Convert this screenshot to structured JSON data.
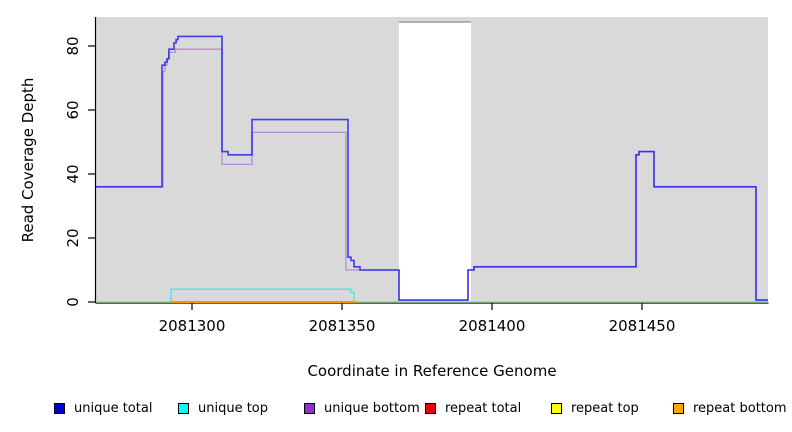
{
  "axes": {
    "x": {
      "label": "Coordinate in Reference Genome",
      "tick_values": [
        2081300,
        2081350,
        2081400,
        2081450
      ],
      "tick_labels": [
        "2081300",
        "2081350",
        "2081400",
        "2081450"
      ],
      "range": [
        2081268,
        2081492
      ]
    },
    "y": {
      "label": "Read Coverage Depth",
      "tick_values": [
        0,
        20,
        40,
        60,
        80
      ],
      "tick_labels": [
        "0",
        "20",
        "40",
        "60",
        "80"
      ],
      "range": [
        0,
        89
      ]
    }
  },
  "colors": {
    "plot_background": "#d9d9d9",
    "gap_fill": "#ffffff",
    "gap_top_border": "#9c9c9c",
    "axis": "#000000",
    "unique_total_line": "#1c1cee",
    "unique_bottom_line": "#b88cd8",
    "unique_top_line": "#3de9e9",
    "repeat_bottom_line": "#ff9100",
    "baseline_green": "#9cd89c"
  },
  "gap_region": {
    "x_start": 2081369,
    "x_end": 2081393
  },
  "chart_data": {
    "type": "line",
    "title": "",
    "xlabel": "Coordinate in Reference Genome",
    "ylabel": "Read Coverage Depth",
    "xlim": [
      2081268,
      2081492
    ],
    "ylim": [
      0,
      89
    ],
    "grid": false,
    "legend_position": "bottom",
    "series": [
      {
        "name": "baseline",
        "color": "#9cd89c",
        "width": 1.4,
        "points": [
          [
            2081268,
            0
          ],
          [
            2081492,
            0
          ]
        ]
      },
      {
        "name": "repeat bottom",
        "color": "#ff9100",
        "width": 2,
        "points": [
          [
            2081293,
            0
          ],
          [
            2081355,
            0
          ]
        ]
      },
      {
        "name": "unique top",
        "color": "#3de9e9",
        "width": 1.3,
        "points": [
          [
            2081293,
            0
          ],
          [
            2081293,
            4
          ],
          [
            2081353,
            4
          ],
          [
            2081353,
            3
          ],
          [
            2081354,
            3
          ],
          [
            2081354,
            0
          ]
        ]
      },
      {
        "name": "unique bottom",
        "color": "#b88cd8",
        "width": 1.3,
        "points": [
          [
            2081268,
            36
          ],
          [
            2081290.3,
            36
          ],
          [
            2081290.3,
            72
          ],
          [
            2081291,
            72
          ],
          [
            2081291,
            74
          ],
          [
            2081291.7,
            74
          ],
          [
            2081291.7,
            76
          ],
          [
            2081292.3,
            76
          ],
          [
            2081292.3,
            78
          ],
          [
            2081294.5,
            78
          ],
          [
            2081294.5,
            79
          ],
          [
            2081310,
            79
          ],
          [
            2081310,
            43
          ],
          [
            2081320,
            43
          ],
          [
            2081320,
            53
          ],
          [
            2081351.3,
            53
          ],
          [
            2081351.3,
            10
          ],
          [
            2081369,
            10
          ],
          [
            2081369,
            0.6
          ],
          [
            2081392,
            0.6
          ],
          [
            2081392,
            10
          ],
          [
            2081394,
            10
          ],
          [
            2081394,
            11
          ],
          [
            2081448,
            11
          ],
          [
            2081448,
            46
          ],
          [
            2081449,
            46
          ],
          [
            2081449,
            47
          ],
          [
            2081454,
            47
          ],
          [
            2081454,
            36
          ],
          [
            2081488,
            36
          ],
          [
            2081488,
            0.6
          ],
          [
            2081492,
            0.6
          ]
        ]
      },
      {
        "name": "unique total",
        "color": "#1c1cee",
        "width": 1.6,
        "opacity": 0.82,
        "points": [
          [
            2081268,
            36
          ],
          [
            2081290,
            36
          ],
          [
            2081290,
            74
          ],
          [
            2081291,
            74
          ],
          [
            2081291,
            75
          ],
          [
            2081291.7,
            75
          ],
          [
            2081291.7,
            76
          ],
          [
            2081292.3,
            76
          ],
          [
            2081292.3,
            79
          ],
          [
            2081294,
            79
          ],
          [
            2081294,
            81
          ],
          [
            2081294.7,
            81
          ],
          [
            2081294.7,
            82
          ],
          [
            2081295.3,
            82
          ],
          [
            2081295.3,
            83
          ],
          [
            2081310,
            83
          ],
          [
            2081310,
            47
          ],
          [
            2081312,
            47
          ],
          [
            2081312,
            46
          ],
          [
            2081320,
            46
          ],
          [
            2081320,
            57
          ],
          [
            2081352,
            57
          ],
          [
            2081352,
            14
          ],
          [
            2081353,
            14
          ],
          [
            2081353,
            13
          ],
          [
            2081354,
            13
          ],
          [
            2081354,
            11
          ],
          [
            2081356,
            11
          ],
          [
            2081356,
            10
          ],
          [
            2081369,
            10
          ],
          [
            2081369,
            0.6
          ],
          [
            2081392,
            0.6
          ],
          [
            2081392,
            10
          ],
          [
            2081394,
            10
          ],
          [
            2081394,
            11
          ],
          [
            2081448,
            11
          ],
          [
            2081448,
            46
          ],
          [
            2081449,
            46
          ],
          [
            2081449,
            47
          ],
          [
            2081454,
            47
          ],
          [
            2081454,
            36
          ],
          [
            2081488,
            36
          ],
          [
            2081488,
            0.6
          ],
          [
            2081492,
            0.6
          ]
        ]
      }
    ]
  },
  "legend": {
    "items": [
      {
        "label": "unique total",
        "color": "#0000dc"
      },
      {
        "label": "unique top",
        "color": "#00ffff"
      },
      {
        "label": "unique bottom",
        "color": "#9232cc"
      },
      {
        "label": "repeat total",
        "color": "#e60000"
      },
      {
        "label": "repeat top",
        "color": "#ffff00"
      },
      {
        "label": "repeat bottom",
        "color": "#ffa500"
      }
    ]
  }
}
